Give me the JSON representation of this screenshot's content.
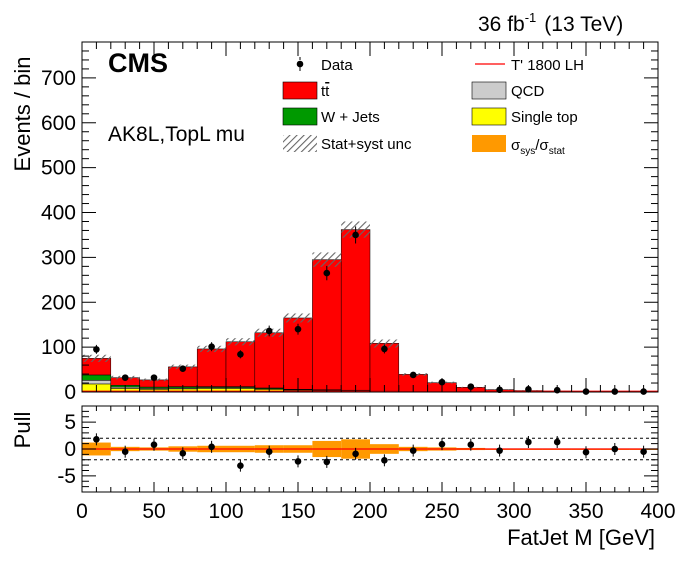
{
  "header": {
    "lumi": "36 fb",
    "lumi_exp": "-1",
    "energy": "(13 TeV)",
    "cms": "CMS",
    "channel": "AK8L,TopL mu"
  },
  "colors": {
    "ttbar": "#ff0000",
    "wjets": "#009900",
    "qcd": "#cccccc",
    "singletop": "#ffff00",
    "ratio_band": "#ff9900",
    "signal_line": "#ff0000",
    "data": "#000000",
    "unc_hatch": "#666666"
  },
  "legend": {
    "data": "Data",
    "ttbar_main": "t",
    "ttbar_bar": "t",
    "wjets": "W + Jets",
    "unc": "Stat+syst unc",
    "signal": "T' 1800 LH",
    "qcd": "QCD",
    "singletop": "Single top",
    "ratio_sigma1": "σ",
    "ratio_sub1": "sys",
    "ratio_slash": "/σ",
    "ratio_sub2": "stat"
  },
  "chart_data": [
    {
      "type": "bar",
      "stacked": true,
      "xlabel": "",
      "ylabel": "Events / bin",
      "xlim": [
        0,
        400
      ],
      "ylim": [
        0,
        780
      ],
      "yticks": [
        0,
        100,
        200,
        300,
        400,
        500,
        600,
        700
      ],
      "bin_edges": [
        0,
        20,
        40,
        60,
        80,
        100,
        120,
        140,
        160,
        180,
        200,
        220,
        240,
        260,
        280,
        300,
        320,
        340,
        360,
        380,
        400
      ],
      "series": [
        {
          "name": "Single top",
          "color": "#ffff00",
          "values": [
            18,
            8,
            6,
            7,
            8,
            8,
            6,
            4,
            3,
            2,
            1,
            0.5,
            0.3,
            0.2,
            0.1,
            0.1,
            0,
            0,
            0,
            0
          ]
        },
        {
          "name": "QCD",
          "color": "#cccccc",
          "values": [
            8,
            3,
            2,
            2,
            2,
            2,
            1,
            1,
            1,
            1,
            0.5,
            0.3,
            0.2,
            0.1,
            0.1,
            0,
            0,
            0,
            0,
            0
          ]
        },
        {
          "name": "W + Jets",
          "color": "#009900",
          "values": [
            12,
            4,
            3,
            3,
            2,
            2,
            2,
            1,
            1,
            1,
            1,
            0.5,
            0.3,
            0.2,
            0.1,
            0.1,
            0,
            0,
            0,
            0
          ]
        },
        {
          "name": "tt̄",
          "color": "#ff0000",
          "values": [
            37,
            17,
            16,
            44,
            84,
            100,
            123,
            159,
            290,
            358,
            106,
            38,
            20,
            10,
            5,
            3,
            2,
            1,
            1,
            1
          ]
        }
      ],
      "total": [
        75,
        32,
        27,
        56,
        96,
        112,
        132,
        165,
        295,
        362,
        108,
        39,
        21,
        10.5,
        5.3,
        3.2,
        2,
        1,
        1,
        1
      ],
      "uncertainty": [
        8,
        4,
        3,
        5,
        7,
        8,
        9,
        10,
        16,
        18,
        9,
        3,
        2,
        1,
        1,
        1,
        0.5,
        0.5,
        0.5,
        0.5
      ],
      "data": {
        "name": "Data",
        "x": [
          10,
          30,
          50,
          70,
          90,
          110,
          130,
          150,
          170,
          190,
          210,
          230,
          250,
          270,
          290,
          310,
          330,
          350,
          370,
          390
        ],
        "y": [
          95,
          32,
          32,
          52,
          101,
          84,
          136,
          140,
          265,
          350,
          96,
          38,
          22,
          12,
          5,
          6,
          4,
          1,
          1,
          1
        ],
        "err": [
          10,
          6,
          6,
          7,
          10,
          9,
          12,
          12,
          16,
          19,
          10,
          6,
          5,
          3.5,
          2.2,
          2.4,
          2,
          1,
          1,
          1
        ]
      },
      "signal": {
        "name": "T' 1800 LH",
        "values": [
          0.3,
          0.3,
          0.3,
          0.3,
          0.3,
          0.3,
          0.3,
          0.3,
          0.3,
          0.3,
          0.3,
          0.3,
          0.3,
          0.3,
          0.3,
          0.3,
          0.3,
          0.3,
          0.3,
          0.3
        ]
      }
    },
    {
      "type": "bar",
      "xlabel": "FatJet M [GeV]",
      "ylabel": "Pull",
      "xlim": [
        0,
        400
      ],
      "ylim": [
        -8,
        8
      ],
      "xticks": [
        0,
        50,
        100,
        150,
        200,
        250,
        300,
        350,
        400
      ],
      "yticks": [
        -5,
        0,
        5
      ],
      "reference_lines": [
        2,
        -2
      ],
      "band_sys_over_stat": [
        1.2,
        0.4,
        0.3,
        0.5,
        0.6,
        0.6,
        0.7,
        0.7,
        1.5,
        1.8,
        0.9,
        0.4,
        0.3,
        0.2,
        0.1,
        0.1,
        0.1,
        0.1,
        0.1,
        0.1
      ],
      "pull": {
        "x": [
          10,
          30,
          50,
          70,
          90,
          110,
          130,
          150,
          170,
          190,
          210,
          230,
          250,
          270,
          290,
          310,
          330,
          350,
          370,
          390
        ],
        "y": [
          1.8,
          -0.5,
          0.8,
          -0.8,
          0.4,
          -3.1,
          -0.5,
          -2.3,
          -2.4,
          -0.9,
          -2.1,
          -0.3,
          0.9,
          0.8,
          -0.3,
          1.3,
          1.3,
          -0.6,
          0,
          -0.5
        ]
      }
    }
  ]
}
